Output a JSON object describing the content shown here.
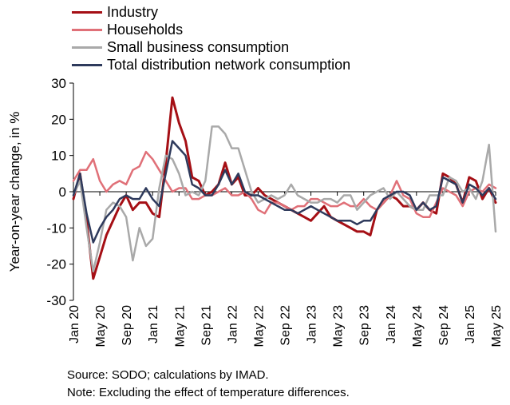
{
  "chart_data": {
    "type": "line",
    "ylabel": "Year-on-year change, in %",
    "ylim": [
      -30,
      30
    ],
    "yticks": [
      30,
      20,
      10,
      0,
      -10,
      -20,
      -30
    ],
    "x_tick_labels": [
      "Jan 20",
      "May 20",
      "Sep 20",
      "Jan 21",
      "May 21",
      "Sep 21",
      "Jan 22",
      "May 22",
      "Sep 22",
      "Jan 23",
      "May 23",
      "Sep 23",
      "Jan 24",
      "May 24",
      "Sep 24",
      "Jan 25",
      "May 25"
    ],
    "x_tick_step_months": 4,
    "n_months": 65,
    "grid": false,
    "legend_position": "top-left",
    "series": [
      {
        "name": "Industry",
        "color": "#a50f15",
        "values": [
          -2,
          5,
          -8,
          -24,
          -18,
          -12,
          -8,
          -4,
          -1,
          -5,
          -3,
          -3,
          -6,
          -7,
          8,
          26,
          19,
          14,
          4,
          3,
          -1,
          0,
          2,
          8,
          2,
          4,
          -1,
          -1,
          1,
          -1,
          -2,
          -3,
          -4,
          -5,
          -6,
          -7,
          -8,
          -6,
          -4,
          -7,
          -8,
          -9,
          -10,
          -11,
          -11,
          -12,
          -5,
          -3,
          -1,
          -2,
          -4,
          -4,
          -5,
          -3,
          -5,
          -6,
          5,
          4,
          2,
          -3,
          4,
          3,
          -2,
          1,
          -3
        ]
      },
      {
        "name": "Households",
        "color": "#e07078",
        "values": [
          3,
          6,
          6,
          9,
          3,
          0,
          2,
          3,
          2,
          6,
          7,
          11,
          9,
          6,
          3,
          0,
          1,
          1,
          -2,
          -2,
          -1,
          -1,
          0,
          1,
          -1,
          -1,
          0,
          -2,
          -5,
          -6,
          -3,
          -3,
          -4,
          -5,
          -4,
          -4,
          -2,
          -2,
          -3,
          -4,
          -4,
          -3,
          -4,
          -4,
          -2,
          -4,
          -5,
          -3,
          -1,
          3,
          -1,
          -2,
          -6,
          -7,
          -7,
          -3,
          1,
          0,
          -1,
          -4,
          0,
          1,
          0,
          2,
          1
        ]
      },
      {
        "name": "Small business consumption",
        "color": "#a9a9a9",
        "values": [
          -1,
          3,
          -10,
          -22,
          -14,
          -5,
          -3,
          -4,
          -7,
          -19,
          -10,
          -15,
          -13,
          1,
          10,
          9,
          5,
          -1,
          0,
          -1,
          3,
          18,
          18,
          16,
          12,
          12,
          6,
          0,
          -3,
          -2,
          -1,
          -2,
          -1,
          2,
          -1,
          -2,
          -3,
          -3,
          -2,
          -2,
          -3,
          -1,
          -1,
          -5,
          -3,
          -1,
          0,
          1,
          -2,
          0,
          -2,
          -4,
          -5,
          -5,
          -1,
          -1,
          -1,
          4,
          3,
          0,
          1,
          -2,
          3,
          13,
          -11
        ]
      },
      {
        "name": "Total distribution network consumption",
        "color": "#2e3a5c",
        "values": [
          -1,
          5,
          -6,
          -14,
          -10,
          -7,
          -5,
          -2,
          -1,
          -2,
          -2,
          1,
          -2,
          -4,
          5,
          14,
          12,
          10,
          2,
          1,
          -1,
          -1,
          2,
          6,
          2,
          5,
          0,
          -1,
          -1,
          -2,
          -3,
          -4,
          -5,
          -5,
          -6,
          -5,
          -4,
          -5,
          -6,
          -7,
          -8,
          -8,
          -8,
          -9,
          -8,
          -8,
          -5,
          -2,
          -1,
          0,
          0,
          -1,
          -5,
          -3,
          -5,
          -4,
          4,
          3,
          2,
          -3,
          2,
          1,
          -1,
          1,
          -2
        ]
      }
    ]
  },
  "notes": {
    "source": "Source: SODO; calculations by IMAD.",
    "note": "Note:  Excluding the effect of temperature differences."
  }
}
